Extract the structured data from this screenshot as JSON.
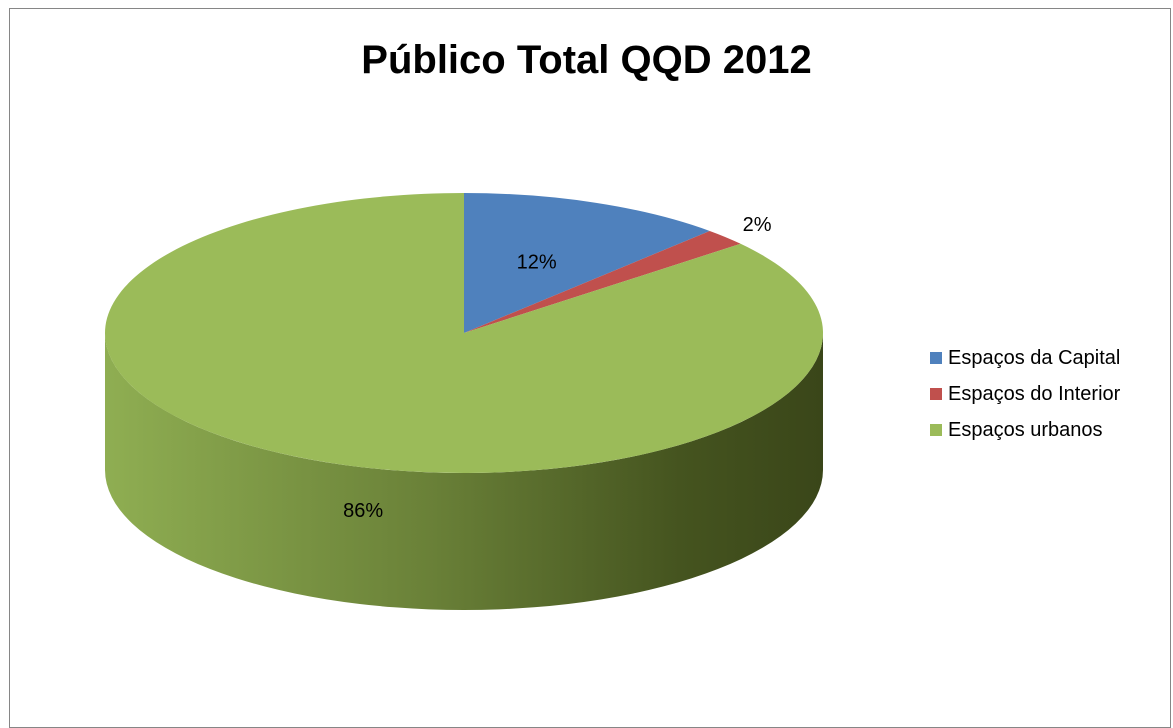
{
  "chart_data": {
    "type": "pie",
    "title": "Público Total QQD 2012",
    "categories": [
      "Espaços da Capital",
      "Espaços do Interior",
      "Espaços urbanos"
    ],
    "values": [
      12,
      2,
      86
    ],
    "labels": [
      "12%",
      "2%",
      "86%"
    ],
    "colors": [
      "#4F81BD",
      "#C0504D",
      "#9BBB59"
    ],
    "legend_position": "right",
    "three_d": true
  }
}
